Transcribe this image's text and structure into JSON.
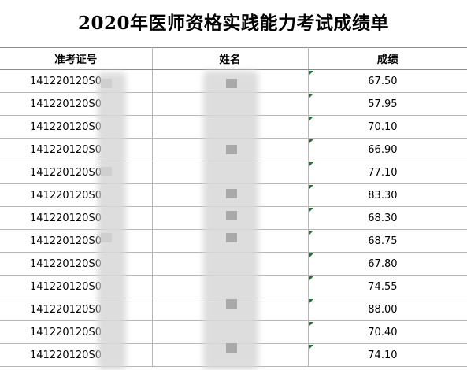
{
  "title": "2020年医师资格实践能力考试成绩单",
  "headers": {
    "id": "准考证号",
    "name": "姓名",
    "score": "成绩"
  },
  "rows": [
    {
      "id": "141220120S0",
      "score": "67.50"
    },
    {
      "id": "141220120S0",
      "score": "57.95"
    },
    {
      "id": "141220120S0",
      "score": "70.10"
    },
    {
      "id": "141220120S0",
      "score": "66.90"
    },
    {
      "id": "141220120S0",
      "score": "77.10"
    },
    {
      "id": "141220120S0",
      "score": "83.30"
    },
    {
      "id": "141220120S0",
      "score": "68.30"
    },
    {
      "id": "141220120S0",
      "score": "68.75"
    },
    {
      "id": "141220120S0",
      "score": "67.80"
    },
    {
      "id": "141220120S0",
      "score": "74.55"
    },
    {
      "id": "141220120S0",
      "score": "88.00"
    },
    {
      "id": "141220120S0",
      "score": "70.40"
    },
    {
      "id": "141220120S0",
      "score": "74.10"
    }
  ]
}
